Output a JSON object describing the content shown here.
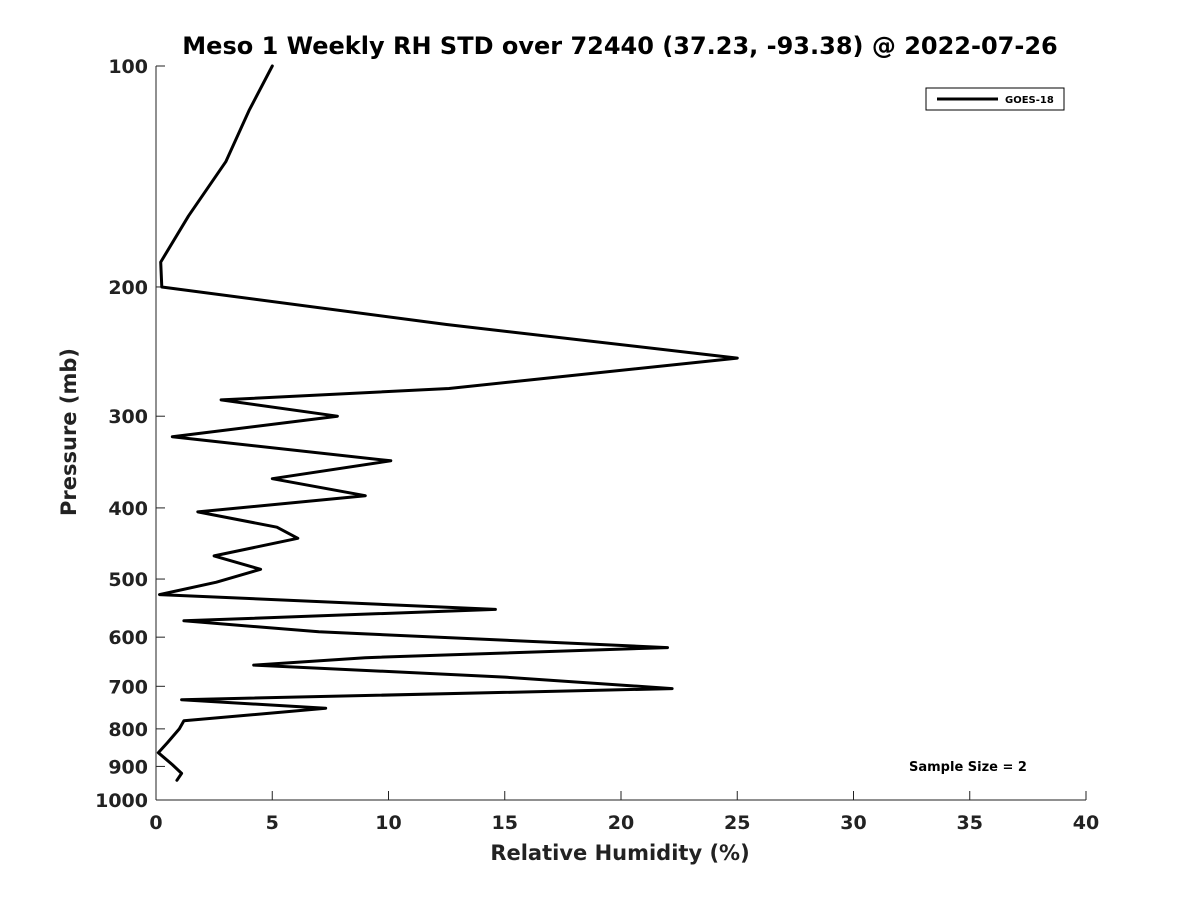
{
  "chart_data": {
    "type": "line",
    "title": "Meso 1 Weekly RH STD over 72440 (37.23, -93.38) @ 2022-07-26",
    "xlabel": "Relative Humidity (%)",
    "ylabel": "Pressure (mb)",
    "xlim": [
      0,
      40
    ],
    "ylim": [
      100,
      1000
    ],
    "y_scale": "log",
    "y_reversed": true,
    "x_ticks": [
      0,
      5,
      10,
      15,
      20,
      25,
      30,
      35,
      40
    ],
    "y_ticks": [
      100,
      200,
      300,
      400,
      500,
      600,
      700,
      800,
      900,
      1000
    ],
    "grid": false,
    "legend_position": "top-right",
    "series": [
      {
        "name": "GOES-18",
        "color": "#000000",
        "points": [
          [
            5.0,
            100
          ],
          [
            4.0,
            115
          ],
          [
            3.0,
            135
          ],
          [
            1.4,
            160
          ],
          [
            0.2,
            185
          ],
          [
            0.25,
            200
          ],
          [
            12.5,
            225
          ],
          [
            25.0,
            250
          ],
          [
            12.6,
            275
          ],
          [
            2.8,
            285
          ],
          [
            7.8,
            300
          ],
          [
            0.7,
            320
          ],
          [
            10.1,
            345
          ],
          [
            5.0,
            365
          ],
          [
            9.0,
            385
          ],
          [
            1.8,
            405
          ],
          [
            5.2,
            425
          ],
          [
            6.1,
            440
          ],
          [
            2.5,
            465
          ],
          [
            4.5,
            485
          ],
          [
            2.6,
            505
          ],
          [
            0.15,
            525
          ],
          [
            14.6,
            550
          ],
          [
            1.2,
            570
          ],
          [
            7.0,
            590
          ],
          [
            22.0,
            620
          ],
          [
            9.0,
            640
          ],
          [
            4.2,
            655
          ],
          [
            15.0,
            680
          ],
          [
            22.2,
            705
          ],
          [
            1.1,
            730
          ],
          [
            7.3,
            750
          ],
          [
            1.2,
            780
          ],
          [
            1.0,
            800
          ],
          [
            0.5,
            835
          ],
          [
            0.1,
            862
          ],
          [
            0.7,
            895
          ],
          [
            1.1,
            920
          ],
          [
            0.9,
            940
          ]
        ]
      }
    ],
    "annotation": "Sample Size = 2"
  }
}
